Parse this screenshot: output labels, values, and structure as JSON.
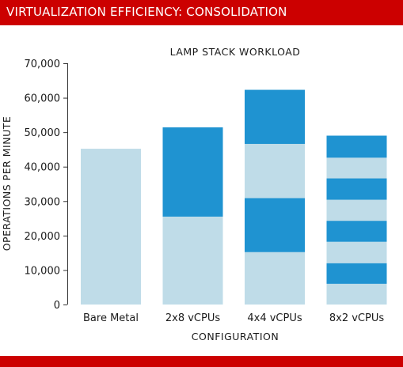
{
  "header": {
    "title": "VIRTUALIZATION EFFICIENCY: CONSOLIDATION"
  },
  "colors": {
    "brand_red": "#cc0000",
    "light_blue": "#bfdce8",
    "dark_blue": "#1f93d1",
    "axis": "#333333",
    "text": "#1a1a1a"
  },
  "chart_data": {
    "type": "bar",
    "stacked": true,
    "title": "LAMP STACK WORKLOAD",
    "xlabel": "CONFIGURATION",
    "ylabel": "OPERATIONS PER MINUTE",
    "ylim": [
      0,
      70000
    ],
    "yticks": [
      0,
      10000,
      20000,
      30000,
      40000,
      50000,
      60000,
      70000
    ],
    "ytick_labels": [
      "0",
      "10,000",
      "20,000",
      "30,000",
      "40,000",
      "50,000",
      "60,000",
      "70,000"
    ],
    "grid": false,
    "legend": "none",
    "categories": [
      "Bare Metal",
      "2x8 vCPUs",
      "4x4 vCPUs",
      "8x2 vCPUs"
    ],
    "stacks": [
      [
        45200
      ],
      [
        25500,
        25900
      ],
      [
        15200,
        15700,
        15700,
        15700
      ],
      [
        6000,
        6000,
        6200,
        6100,
        6100,
        6200,
        6000,
        6400
      ]
    ]
  }
}
